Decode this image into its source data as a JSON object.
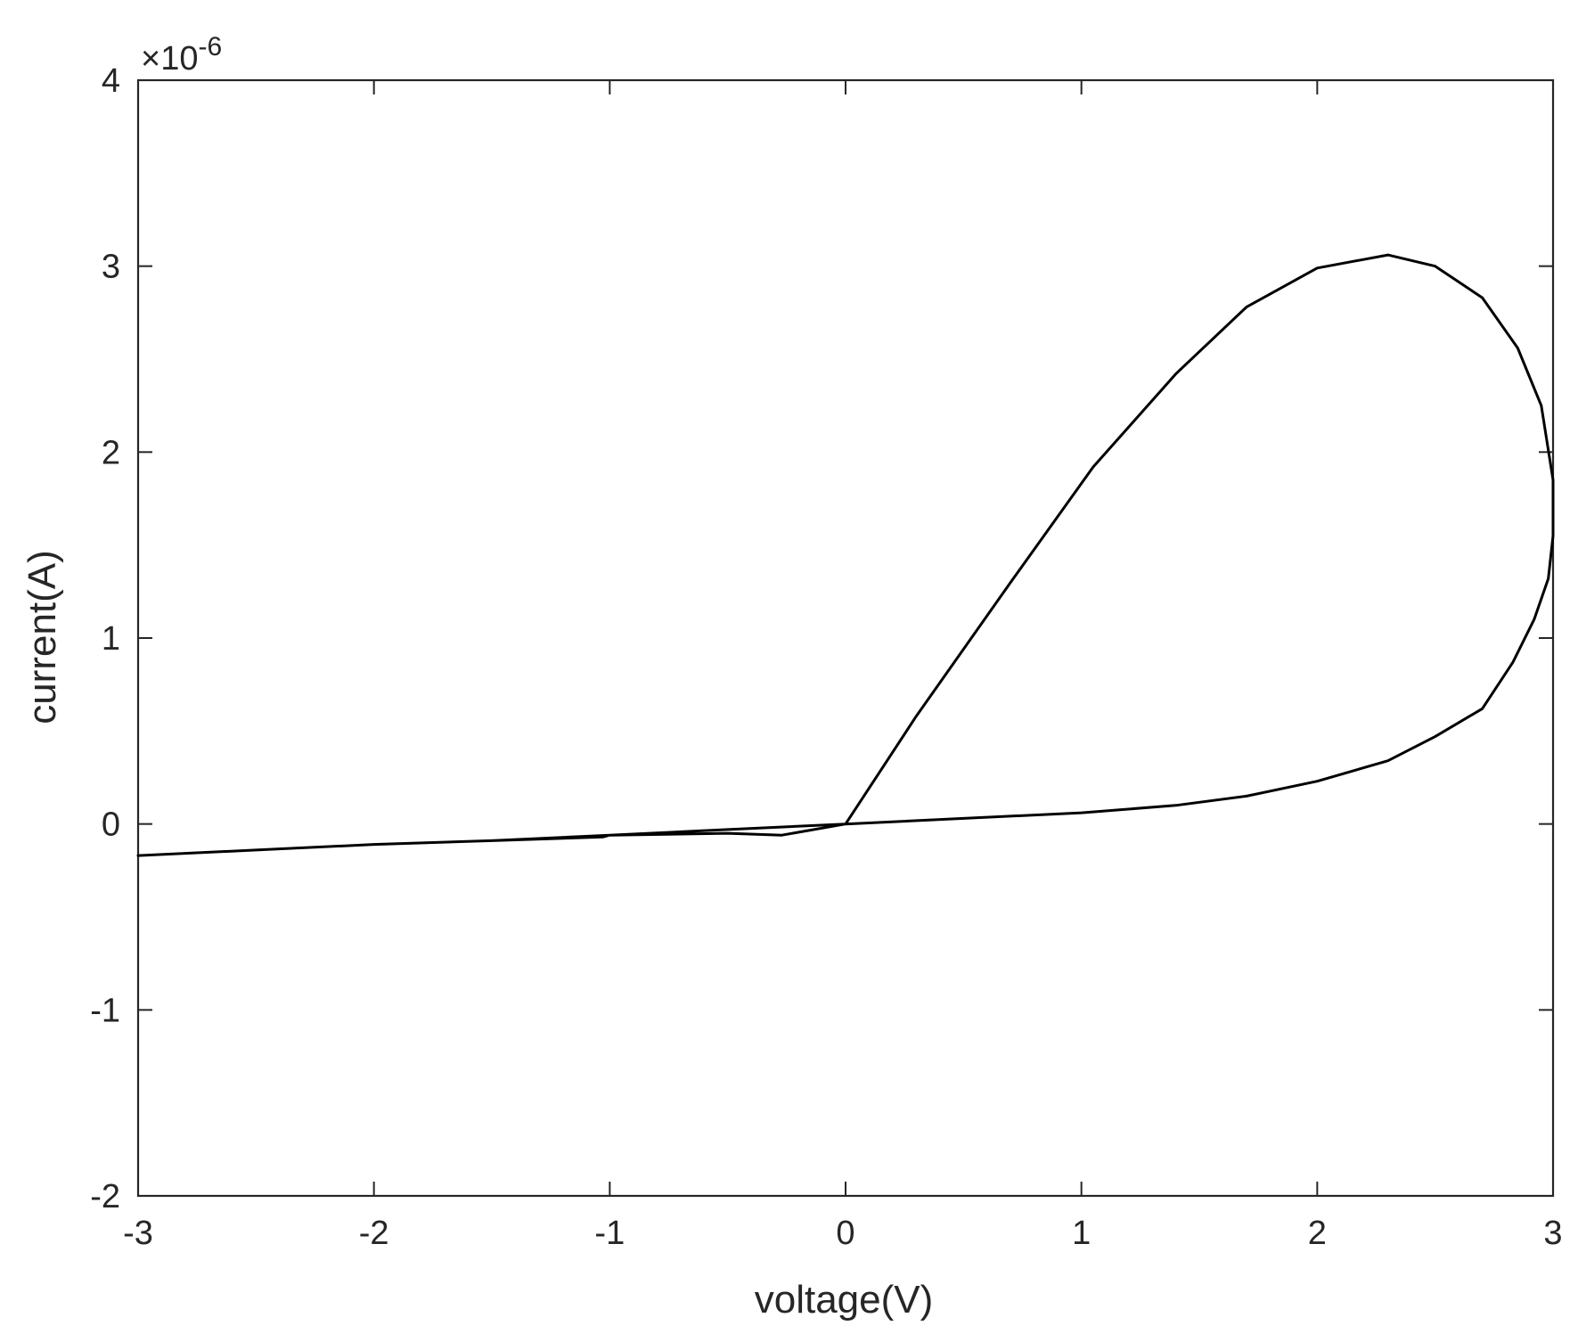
{
  "chart_data": {
    "type": "line",
    "title": "",
    "xlabel": "voltage(V)",
    "ylabel": "current(A)",
    "xlim": [
      -3,
      3
    ],
    "ylim": [
      -2,
      4
    ],
    "x_ticks": [
      -3,
      -2,
      -1,
      0,
      1,
      2,
      3
    ],
    "y_ticks": [
      -2,
      -1,
      0,
      1,
      2,
      3,
      4
    ],
    "x_tick_labels": [
      "-3",
      "-2",
      "-1",
      "0",
      "1",
      "2",
      "3"
    ],
    "y_tick_labels": [
      "-2",
      "-1",
      "0",
      "1",
      "2",
      "3",
      "4"
    ],
    "y_exponent": {
      "base": "×10",
      "power": "-6"
    },
    "grid": false,
    "line_color": "#000000",
    "series": [
      {
        "x": [
          0,
          0.3,
          0.7,
          1.05,
          1.4,
          1.7,
          2.0,
          2.3,
          2.5,
          2.7,
          2.85,
          2.95,
          3.0,
          3.0,
          2.98,
          2.92,
          2.83,
          2.7,
          2.5,
          2.3,
          2.0,
          1.7,
          1.4,
          1.0,
          0.5,
          0,
          -0.5,
          -1.0,
          -1.03,
          -1.5,
          -2.0,
          -2.5,
          -3.0,
          -2.5,
          -2.0,
          -1.5,
          -1.0,
          -0.5,
          -0.27,
          0
        ],
        "y": [
          0,
          0.58,
          1.3,
          1.92,
          2.42,
          2.78,
          2.99,
          3.06,
          3.0,
          2.83,
          2.56,
          2.25,
          1.85,
          1.55,
          1.32,
          1.1,
          0.87,
          0.62,
          0.47,
          0.34,
          0.23,
          0.15,
          0.1,
          0.06,
          0.03,
          0,
          -0.03,
          -0.06,
          -0.07,
          -0.09,
          -0.11,
          -0.14,
          -0.17,
          -0.14,
          -0.11,
          -0.09,
          -0.06,
          -0.05,
          -0.06,
          0
        ]
      }
    ]
  }
}
